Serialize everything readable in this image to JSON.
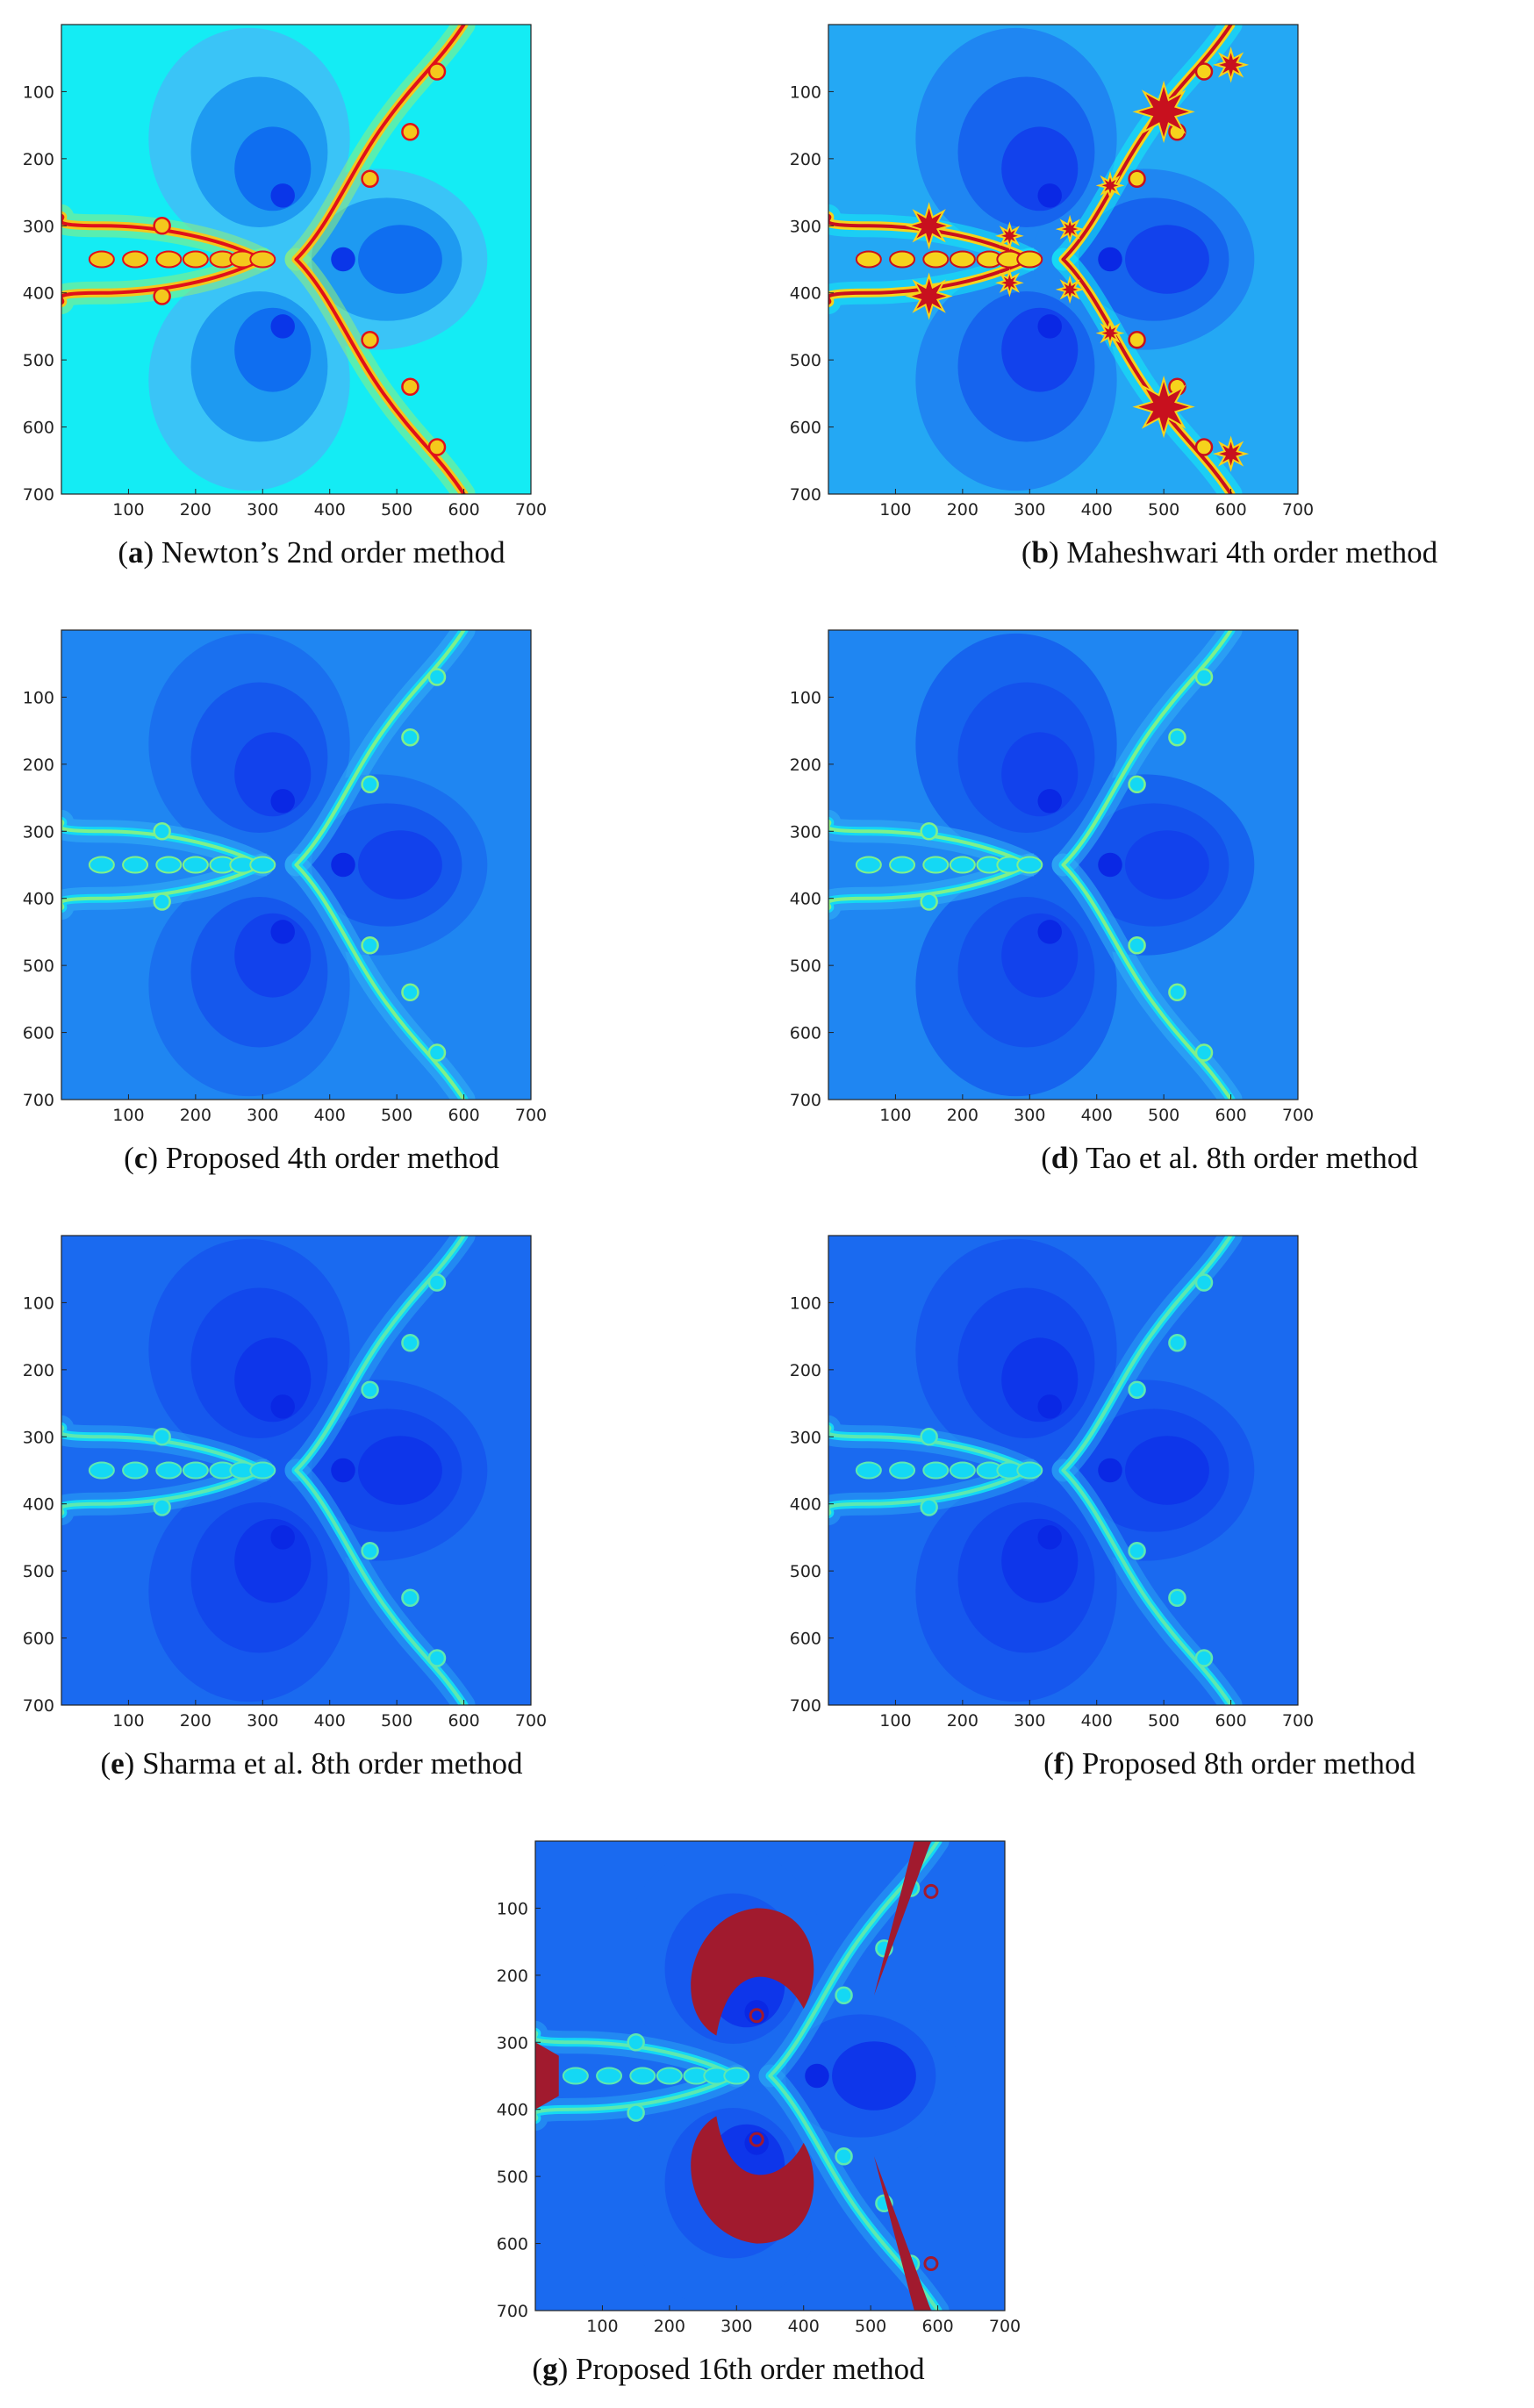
{
  "figure": {
    "panels": [
      {
        "id": "a",
        "letter": "a",
        "caption": "Newton’s 2nd order method",
        "palette": {
          "bg": "#14ecf4",
          "lobe_outer": "#3ac4f7",
          "lobe_mid": "#1e9af1",
          "lobe_inner": "#0f6ef0",
          "core": "#0a36e8",
          "fractal": "#e0101a",
          "fractal_halo": "#f4c81c",
          "halo_wide": "#8ff07a"
        },
        "x_ticks": [
          "100",
          "200",
          "300",
          "400",
          "500",
          "600",
          "700"
        ],
        "y_ticks": [
          "100",
          "200",
          "300",
          "400",
          "500",
          "600",
          "700"
        ]
      },
      {
        "id": "b",
        "letter": "b",
        "caption": "Maheshwari 4th order method",
        "palette": {
          "bg": "#24a8f4",
          "lobe_outer": "#1f86f2",
          "lobe_mid": "#1664ee",
          "lobe_inner": "#1242ec",
          "core": "#0a28e4",
          "fractal": "#c8101e",
          "fractal_halo": "#f6d31c",
          "halo_wide": "#14ecf4"
        },
        "x_ticks": [
          "100",
          "200",
          "300",
          "400",
          "500",
          "600",
          "700"
        ],
        "y_ticks": [
          "100",
          "200",
          "300",
          "400",
          "500",
          "600",
          "700"
        ]
      },
      {
        "id": "c",
        "letter": "c",
        "caption": "Proposed 4th order method",
        "palette": {
          "bg": "#1f86f2",
          "lobe_outer": "#1a70ef",
          "lobe_mid": "#1558ed",
          "lobe_inner": "#1242ec",
          "core": "#0a28e4",
          "fractal": "#7ff08a",
          "fractal_halo": "#14d8f4",
          "halo_wide": "#33b2f6"
        },
        "x_ticks": [
          "100",
          "200",
          "300",
          "400",
          "500",
          "600",
          "700"
        ],
        "y_ticks": [
          "100",
          "200",
          "300",
          "400",
          "500",
          "600",
          "700"
        ]
      },
      {
        "id": "d",
        "letter": "d",
        "caption": "Tao et al. 8th order method",
        "palette": {
          "bg": "#1f86f2",
          "lobe_outer": "#1664ee",
          "lobe_mid": "#1452ec",
          "lobe_inner": "#1242ec",
          "core": "#0a28e4",
          "fractal": "#7ff08a",
          "fractal_halo": "#14d8f4",
          "halo_wide": "#33b2f6"
        },
        "x_ticks": [
          "100",
          "200",
          "300",
          "400",
          "500",
          "600",
          "700"
        ],
        "y_ticks": [
          "100",
          "200",
          "300",
          "400",
          "500",
          "600",
          "700"
        ]
      },
      {
        "id": "e",
        "letter": "e",
        "caption": "Sharma et al. 8th order method",
        "palette": {
          "bg": "#1a6af0",
          "lobe_outer": "#1658ee",
          "lobe_mid": "#1248ec",
          "lobe_inner": "#0e36ea",
          "core": "#0a28e4",
          "fractal": "#5ee8b0",
          "fractal_halo": "#14d8f4",
          "halo_wide": "#2aa2f4"
        },
        "x_ticks": [
          "100",
          "200",
          "300",
          "400",
          "500",
          "600",
          "700"
        ],
        "y_ticks": [
          "100",
          "200",
          "300",
          "400",
          "500",
          "600",
          "700"
        ]
      },
      {
        "id": "f",
        "letter": "f",
        "caption": "Proposed 8th order method",
        "palette": {
          "bg": "#1a6af0",
          "lobe_outer": "#1658ee",
          "lobe_mid": "#1248ec",
          "lobe_inner": "#0e36ea",
          "core": "#0a28e4",
          "fractal": "#5ee8b0",
          "fractal_halo": "#14d8f4",
          "halo_wide": "#2aa2f4"
        },
        "x_ticks": [
          "100",
          "200",
          "300",
          "400",
          "500",
          "600",
          "700"
        ],
        "y_ticks": [
          "100",
          "200",
          "300",
          "400",
          "500",
          "600",
          "700"
        ]
      },
      {
        "id": "g",
        "letter": "g",
        "caption": "Proposed 16th order method",
        "palette": {
          "bg": "#1a6af0",
          "lobe_outer": "#1a6af0",
          "lobe_mid": "#1658ee",
          "lobe_inner": "#0e36ea",
          "core": "#0a28e4",
          "fractal": "#5ee8b0",
          "fractal_halo": "#14d8f4",
          "halo_wide": "#2aa2f4",
          "accent": "#a11a2e"
        },
        "x_ticks": [
          "100",
          "200",
          "300",
          "400",
          "500",
          "600",
          "700"
        ],
        "y_ticks": [
          "100",
          "200",
          "300",
          "400",
          "500",
          "600",
          "700"
        ]
      }
    ]
  }
}
